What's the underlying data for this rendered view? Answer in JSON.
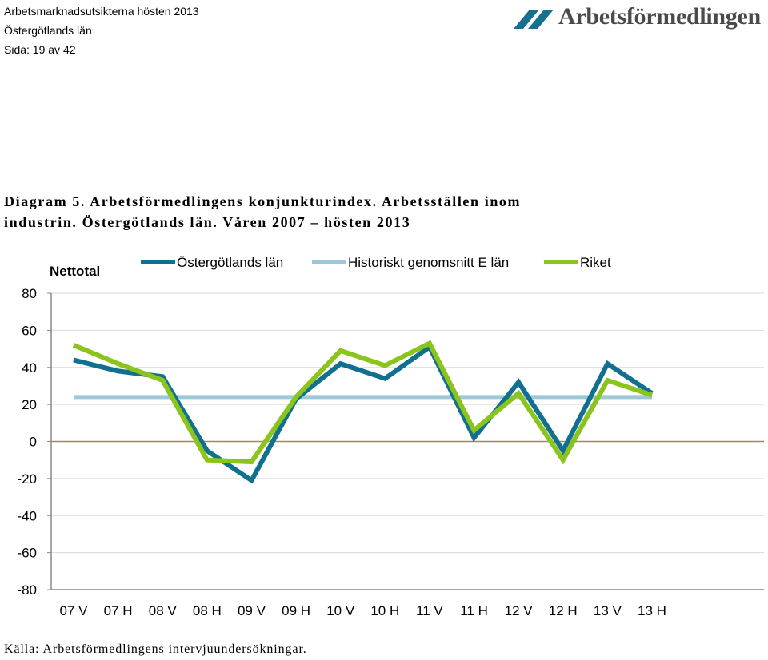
{
  "header": {
    "report_title": "Arbetsmarknadsutsikterna hösten 2013",
    "region": "Östergötlands län",
    "page": "Sida: 19 av 42"
  },
  "logo": {
    "text": "Arbetsförmedlingen"
  },
  "caption": {
    "line1": "Diagram 5. Arbetsförmedlingens konjunkturindex. Arbetsställen inom",
    "line2": "industrin. Östergötlands län. Våren 2007 – hösten 2013"
  },
  "source": "Källa: Arbetsförmedlingens intervjuundersökningar.",
  "chart_data": {
    "type": "line",
    "ylabel": "Nettotal",
    "ylim": [
      -80,
      80
    ],
    "yticks": [
      80,
      60,
      40,
      20,
      0,
      -20,
      -40,
      -60,
      -80
    ],
    "grid": true,
    "legend_position": "top",
    "categories": [
      "07 V",
      "07 H",
      "08 V",
      "08 H",
      "09 V",
      "09 H",
      "10 V",
      "10 H",
      "11 V",
      "11 H",
      "12 V",
      "12 H",
      "13 V",
      "13 H"
    ],
    "series": [
      {
        "name": "Östergötlands län",
        "color": "#11708f",
        "values": [
          44,
          38,
          35,
          -5,
          -21,
          23,
          42,
          34,
          51,
          2,
          32,
          -5,
          42,
          26
        ]
      },
      {
        "name": "Historiskt genomsnitt E län",
        "color": "#9dc8d8",
        "values": [
          24,
          24,
          24,
          24,
          24,
          24,
          24,
          24,
          24,
          24,
          24,
          24,
          24,
          24
        ]
      },
      {
        "name": "Riket",
        "color": "#8bc41d",
        "values": [
          52,
          42,
          33,
          -10,
          -11,
          24,
          49,
          41,
          53,
          6,
          26,
          -10,
          33,
          25
        ]
      }
    ]
  }
}
